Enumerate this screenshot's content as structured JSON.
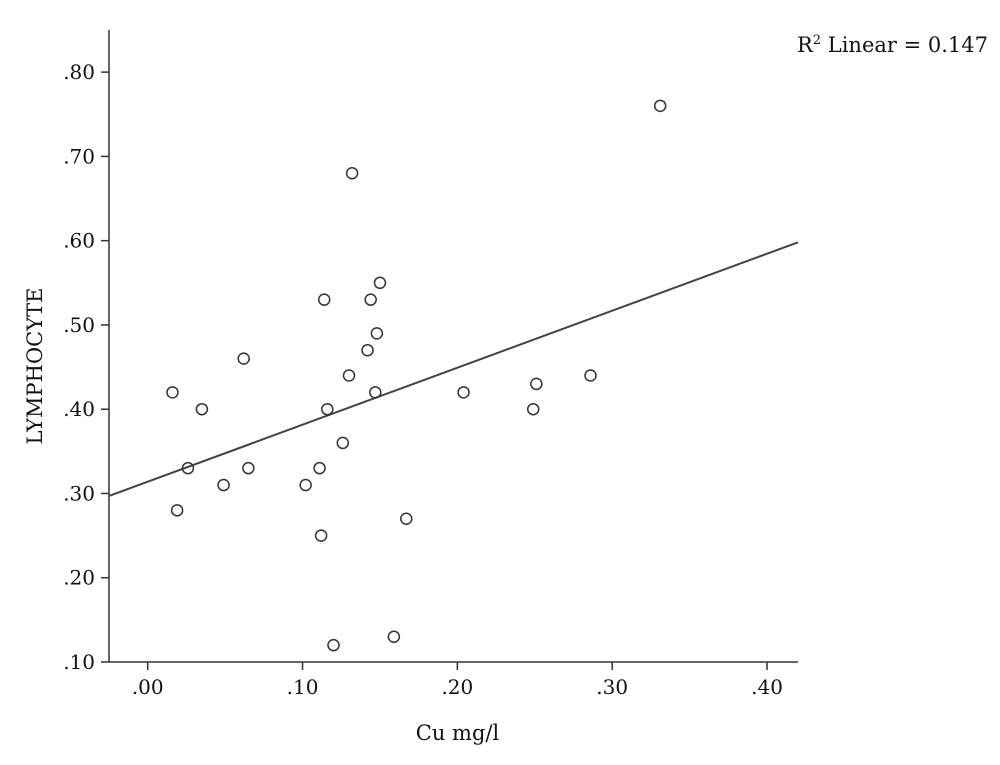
{
  "chart_data": {
    "type": "scatter",
    "xlabel": "Cu mg/l",
    "ylabel": "LYMPHOCYTE",
    "xlim": [
      -0.025,
      0.42
    ],
    "ylim": [
      0.1,
      0.85
    ],
    "x_ticks": [
      {
        "value": 0.0,
        "label": ".00"
      },
      {
        "value": 0.1,
        "label": ".10"
      },
      {
        "value": 0.2,
        "label": ".20"
      },
      {
        "value": 0.3,
        "label": ".30"
      },
      {
        "value": 0.4,
        "label": ".40"
      }
    ],
    "y_ticks": [
      {
        "value": 0.1,
        "label": ".10"
      },
      {
        "value": 0.2,
        "label": ".20"
      },
      {
        "value": 0.3,
        "label": ".30"
      },
      {
        "value": 0.4,
        "label": ".40"
      },
      {
        "value": 0.5,
        "label": ".50"
      },
      {
        "value": 0.6,
        "label": ".60"
      },
      {
        "value": 0.7,
        "label": ".70"
      },
      {
        "value": 0.8,
        "label": ".80"
      }
    ],
    "grid": false,
    "points": [
      {
        "x": 0.016,
        "y": 0.42
      },
      {
        "x": 0.019,
        "y": 0.28
      },
      {
        "x": 0.026,
        "y": 0.33
      },
      {
        "x": 0.035,
        "y": 0.4
      },
      {
        "x": 0.049,
        "y": 0.31
      },
      {
        "x": 0.062,
        "y": 0.46
      },
      {
        "x": 0.065,
        "y": 0.33
      },
      {
        "x": 0.102,
        "y": 0.31
      },
      {
        "x": 0.111,
        "y": 0.33
      },
      {
        "x": 0.112,
        "y": 0.25
      },
      {
        "x": 0.114,
        "y": 0.53
      },
      {
        "x": 0.116,
        "y": 0.4
      },
      {
        "x": 0.12,
        "y": 0.12
      },
      {
        "x": 0.126,
        "y": 0.36
      },
      {
        "x": 0.13,
        "y": 0.44
      },
      {
        "x": 0.132,
        "y": 0.68
      },
      {
        "x": 0.142,
        "y": 0.47
      },
      {
        "x": 0.144,
        "y": 0.53
      },
      {
        "x": 0.147,
        "y": 0.42
      },
      {
        "x": 0.148,
        "y": 0.49
      },
      {
        "x": 0.15,
        "y": 0.55
      },
      {
        "x": 0.159,
        "y": 0.13
      },
      {
        "x": 0.167,
        "y": 0.27
      },
      {
        "x": 0.204,
        "y": 0.42
      },
      {
        "x": 0.249,
        "y": 0.4
      },
      {
        "x": 0.251,
        "y": 0.43
      },
      {
        "x": 0.286,
        "y": 0.44
      },
      {
        "x": 0.331,
        "y": 0.76
      }
    ],
    "fit_line": {
      "type": "linear",
      "x": [
        -0.025,
        0.42
      ],
      "y": [
        0.297,
        0.598
      ]
    },
    "annotation": {
      "r2_prefix": "R",
      "r2_superscript": "2",
      "r2_text": " Linear = 0.147",
      "placement": "top-right"
    }
  }
}
